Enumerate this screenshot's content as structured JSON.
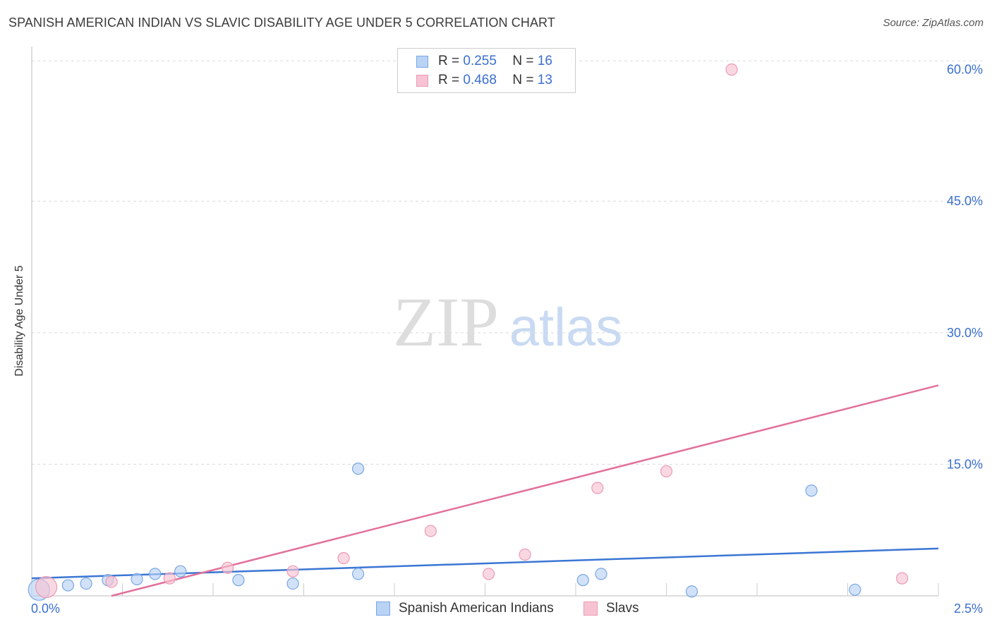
{
  "title": "SPANISH AMERICAN INDIAN VS SLAVIC DISABILITY AGE UNDER 5 CORRELATION CHART",
  "source": "Source: ZipAtlas.com",
  "watermark": {
    "zip": "ZIP",
    "atlas": "atlas"
  },
  "colors": {
    "blue": "#3a76d4",
    "blue_fill": "#b9d3f5",
    "pink": "#e2709a",
    "pink_fill": "#f7c3d3",
    "tick_text": "#3a6fd0"
  },
  "legend_top": [
    {
      "r_label": "R =",
      "r_value": "0.255",
      "n_label": "N =",
      "n_value": "16"
    },
    {
      "r_label": "R =",
      "r_value": "0.468",
      "n_label": "N =",
      "n_value": "13"
    }
  ],
  "legend_bottom": [
    "Spanish American Indians",
    "Slavs"
  ],
  "chart_data": {
    "type": "scatter",
    "title": "SPANISH AMERICAN INDIAN VS SLAVIC DISABILITY AGE UNDER 5 CORRELATION CHART",
    "xlabel": "",
    "ylabel": "Disability Age Under 5",
    "xlim": [
      0,
      2.5
    ],
    "ylim": [
      0,
      61.5
    ],
    "x_tick_labels": [
      "0.0%",
      "2.5%"
    ],
    "y_tick_labels": [
      "15.0%",
      "30.0%",
      "45.0%",
      "60.0%"
    ],
    "y_gridlines": [
      15,
      30,
      45,
      61
    ],
    "series": [
      {
        "name": "Spanish American Indians",
        "r": 0.255,
        "n": 16,
        "points": [
          {
            "x": 0.02,
            "y": 0.7,
            "size": "large"
          },
          {
            "x": 0.1,
            "y": 1.2
          },
          {
            "x": 0.15,
            "y": 1.4
          },
          {
            "x": 0.21,
            "y": 1.8
          },
          {
            "x": 0.29,
            "y": 1.9
          },
          {
            "x": 0.34,
            "y": 2.5
          },
          {
            "x": 0.41,
            "y": 2.8
          },
          {
            "x": 0.57,
            "y": 1.8
          },
          {
            "x": 0.72,
            "y": 1.4
          },
          {
            "x": 0.9,
            "y": 14.5
          },
          {
            "x": 0.9,
            "y": 2.5
          },
          {
            "x": 1.52,
            "y": 1.8
          },
          {
            "x": 1.57,
            "y": 2.5
          },
          {
            "x": 1.82,
            "y": 0.5
          },
          {
            "x": 2.15,
            "y": 12.0
          },
          {
            "x": 2.27,
            "y": 0.7
          }
        ],
        "trend": {
          "x": [
            0,
            2.5
          ],
          "y": [
            2.0,
            5.4
          ]
        }
      },
      {
        "name": "Slavs",
        "r": 0.468,
        "n": 13,
        "points": [
          {
            "x": 0.04,
            "y": 1.0,
            "size": "large"
          },
          {
            "x": 0.22,
            "y": 1.6
          },
          {
            "x": 0.38,
            "y": 2.0
          },
          {
            "x": 0.54,
            "y": 3.2
          },
          {
            "x": 0.72,
            "y": 2.8
          },
          {
            "x": 0.86,
            "y": 4.3
          },
          {
            "x": 1.1,
            "y": 7.4
          },
          {
            "x": 1.26,
            "y": 2.5
          },
          {
            "x": 1.36,
            "y": 4.7
          },
          {
            "x": 1.56,
            "y": 12.3
          },
          {
            "x": 1.75,
            "y": 14.2
          },
          {
            "x": 1.93,
            "y": 60.0
          },
          {
            "x": 2.4,
            "y": 2.0
          }
        ],
        "trend": {
          "x": [
            0.22,
            2.5
          ],
          "y": [
            0.0,
            24.0
          ]
        }
      }
    ]
  }
}
